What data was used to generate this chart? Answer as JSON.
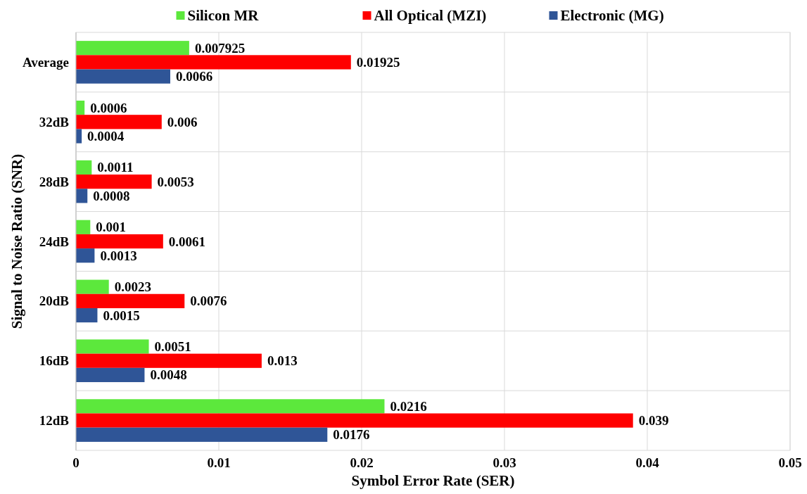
{
  "chart_data": {
    "type": "bar",
    "orientation": "horizontal",
    "xlabel": "Symbol Error Rate (SER)",
    "ylabel": "Signal to Noise Ratio (SNR)",
    "categories": [
      "Average",
      "32dB",
      "28dB",
      "24dB",
      "20dB",
      "16dB",
      "12dB"
    ],
    "series": [
      {
        "name": "Silicon MR",
        "color": "#5ce83c",
        "values": [
          0.007925,
          0.0006,
          0.0011,
          0.001,
          0.0023,
          0.0051,
          0.0216
        ]
      },
      {
        "name": "All Optical (MZI)",
        "color": "#ff0000",
        "values": [
          0.01925,
          0.006,
          0.0053,
          0.0061,
          0.0076,
          0.013,
          0.039
        ]
      },
      {
        "name": "Electronic (MG)",
        "color": "#2f5597",
        "values": [
          0.0066,
          0.0004,
          0.0008,
          0.0013,
          0.0015,
          0.0048,
          0.0176
        ]
      }
    ],
    "xlim": [
      0,
      0.05
    ],
    "xticks": [
      0,
      0.01,
      0.02,
      0.03,
      0.04,
      0.05
    ],
    "grid": true,
    "legend": "top",
    "data_labels": true
  }
}
